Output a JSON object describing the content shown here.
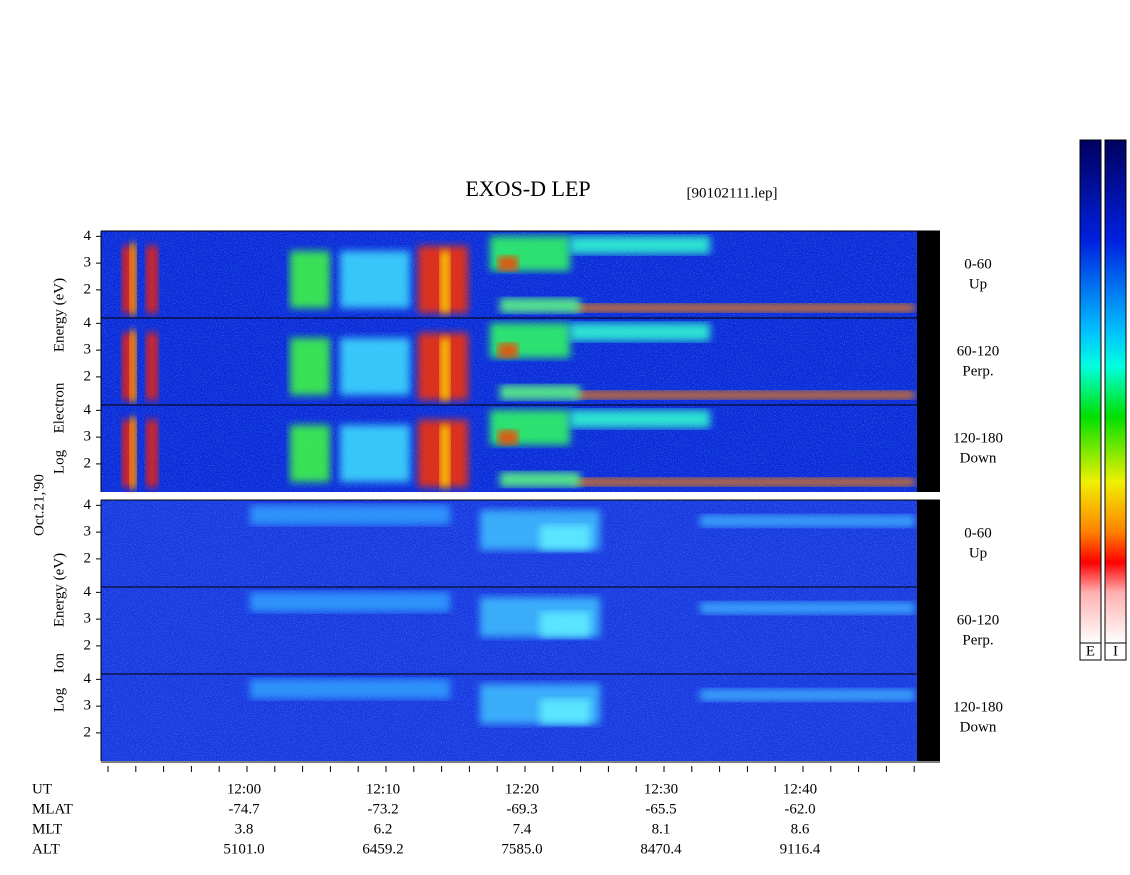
{
  "header": {
    "title": "EXOS-D LEP",
    "file": "[90102111.lep]"
  },
  "date": "Oct.21,'90",
  "groups": [
    {
      "label_lines": [
        "Energy (eV)",
        "Electron",
        "Log"
      ],
      "panels": [
        {
          "range": "0-60",
          "direction": "Up"
        },
        {
          "range": "60-120",
          "direction": "Perp."
        },
        {
          "range": "120-180",
          "direction": "Down"
        }
      ]
    },
    {
      "label_lines": [
        "Energy (eV)",
        "Ion",
        "Log"
      ],
      "panels": [
        {
          "range": "0-60",
          "direction": "Up"
        },
        {
          "range": "60-120",
          "direction": "Perp."
        },
        {
          "range": "120-180",
          "direction": "Down"
        }
      ]
    }
  ],
  "ylim": [
    0.95,
    4.2
  ],
  "yticks": [
    2,
    3,
    4
  ],
  "axis": {
    "rows": [
      {
        "label": "UT",
        "values": [
          "12:00",
          "12:10",
          "12:20",
          "12:30",
          "12:40"
        ]
      },
      {
        "label": "MLAT",
        "values": [
          "-74.7",
          "-73.2",
          "-69.3",
          "-65.5",
          "-62.0"
        ]
      },
      {
        "label": "MLT",
        "values": [
          "3.8",
          "6.2",
          "7.4",
          "8.1",
          "8.6"
        ]
      },
      {
        "label": "ALT",
        "values": [
          "5101.0",
          "6459.2",
          "7585.0",
          "8470.4",
          "9116.4"
        ]
      }
    ]
  },
  "colorbar_labels": [
    "E",
    "I"
  ]
}
